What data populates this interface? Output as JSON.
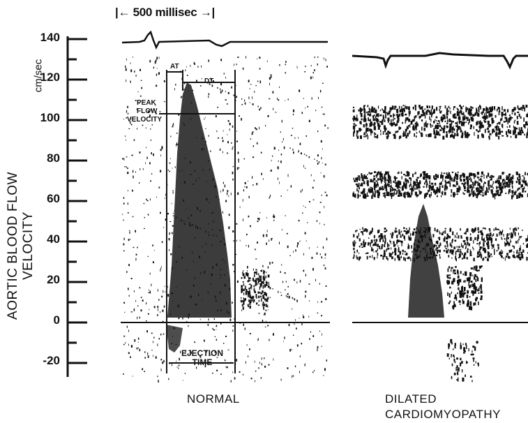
{
  "figure": {
    "y_axis_title": "AORTIC BLOOD FLOW VELOCITY",
    "y_axis_unit": "cm/sec",
    "y_ticks": [
      "140",
      "120",
      "100",
      "80",
      "60",
      "40",
      "20",
      "0",
      "-20"
    ],
    "time_scale_label": "|← 500 millisec →|",
    "panel_labels": {
      "normal": "NORMAL",
      "dilated_line1": "DILATED",
      "dilated_line2": "CARDIOMYOPATHY"
    },
    "annotations": {
      "at": "AT",
      "dt": "DT",
      "peak_line1": "PEAK",
      "peak_line2": "FLOW",
      "peak_line3": "VELOCITY",
      "ejection_line1": "EJECTION",
      "ejection_line2": "TIME"
    },
    "colors": {
      "ink": "#111111",
      "background": "#ffffff"
    }
  }
}
